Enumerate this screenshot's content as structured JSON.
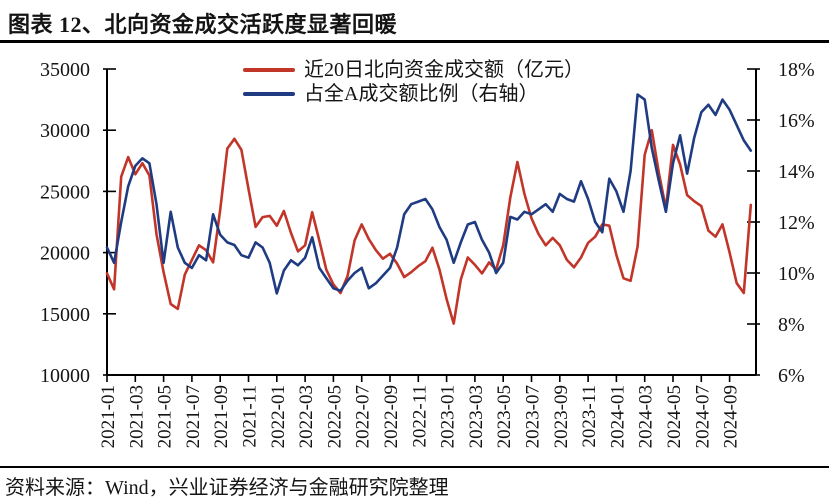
{
  "figure": {
    "title": "图表 12、北向资金成交活跃度显著回暖",
    "source_note": "资料来源：Wind，兴业证券经济与金融研究院整理"
  },
  "colors": {
    "red_series": "#C23529",
    "blue_series": "#1F3C82",
    "axis": "#000000",
    "text": "#141414"
  },
  "chart_data": {
    "type": "line",
    "title": "北向资金成交活跃度显著回暖",
    "grid": false,
    "legend_position": "top-center",
    "x_note": "semi-monthly samples, x in months since 2021-01",
    "x_start_month": 0,
    "x_step_months": 0.5,
    "x_axis_tick_labels": [
      "2021-01",
      "2021-03",
      "2021-05",
      "2021-07",
      "2021-09",
      "2021-11",
      "2022-01",
      "2022-03",
      "2022-05",
      "2022-07",
      "2022-09",
      "2022-11",
      "2023-01",
      "2023-03",
      "2023-05",
      "2023-07",
      "2023-09",
      "2023-11",
      "2024-01",
      "2024-03",
      "2024-05",
      "2024-07",
      "2024-09"
    ],
    "x_tick_step_months": 2,
    "left_axis": {
      "range": [
        10000,
        35000
      ],
      "ticks": [
        35000,
        30000,
        25000,
        20000,
        15000,
        10000
      ]
    },
    "right_axis": {
      "range": [
        6,
        18
      ],
      "ticks": [
        "18%",
        "16%",
        "14%",
        "12%",
        "10%",
        "8%",
        "6%"
      ]
    },
    "series": [
      {
        "name": "近20日北向资金成交额（亿元）",
        "axis": "left",
        "color": "#C23529",
        "values": [
          18300,
          17000,
          26200,
          27800,
          26400,
          27300,
          26300,
          21500,
          18400,
          15800,
          15400,
          18200,
          19400,
          20600,
          20200,
          19200,
          23500,
          28500,
          29300,
          28400,
          25200,
          22100,
          22900,
          23000,
          22200,
          23400,
          21600,
          20100,
          20600,
          23300,
          21000,
          18600,
          17400,
          16700,
          18100,
          21000,
          22300,
          21100,
          20200,
          19500,
          19900,
          19100,
          18000,
          18400,
          18900,
          19300,
          20400,
          18600,
          16200,
          14200,
          17800,
          19600,
          19000,
          18300,
          19200,
          18600,
          20600,
          24500,
          27400,
          24800,
          22800,
          21500,
          20600,
          21200,
          20600,
          19400,
          18800,
          19600,
          20800,
          21300,
          22300,
          22200,
          19800,
          17900,
          17700,
          20500,
          28000,
          30000,
          26500,
          23600,
          28800,
          27200,
          24700,
          24200,
          23800,
          21800,
          21300,
          22300,
          20000,
          17500,
          16700,
          23900
        ]
      },
      {
        "name": "占全A成交额比例（右轴）",
        "axis": "right",
        "color": "#1F3C82",
        "values": [
          11.0,
          10.4,
          12.0,
          13.4,
          14.2,
          14.5,
          14.3,
          12.7,
          10.4,
          12.4,
          11.0,
          10.4,
          10.2,
          10.7,
          10.5,
          12.3,
          11.5,
          11.2,
          11.1,
          10.7,
          10.6,
          11.2,
          11.0,
          10.4,
          9.2,
          10.1,
          10.5,
          10.3,
          10.6,
          11.4,
          10.2,
          9.8,
          9.4,
          9.3,
          9.7,
          10.0,
          10.2,
          9.4,
          9.6,
          9.9,
          10.2,
          11.0,
          12.3,
          12.7,
          12.8,
          12.9,
          12.5,
          11.8,
          11.3,
          10.4,
          11.2,
          11.9,
          12.0,
          11.3,
          10.8,
          10.0,
          10.4,
          12.2,
          12.1,
          12.4,
          12.3,
          12.5,
          12.7,
          12.4,
          13.1,
          12.9,
          12.8,
          13.6,
          12.9,
          12.0,
          11.6,
          13.7,
          13.2,
          12.4,
          14.0,
          17.0,
          16.8,
          14.9,
          13.6,
          12.4,
          14.3,
          15.4,
          13.9,
          15.3,
          16.3,
          16.6,
          16.2,
          16.8,
          16.4,
          15.8,
          15.2,
          14.8
        ]
      }
    ]
  }
}
